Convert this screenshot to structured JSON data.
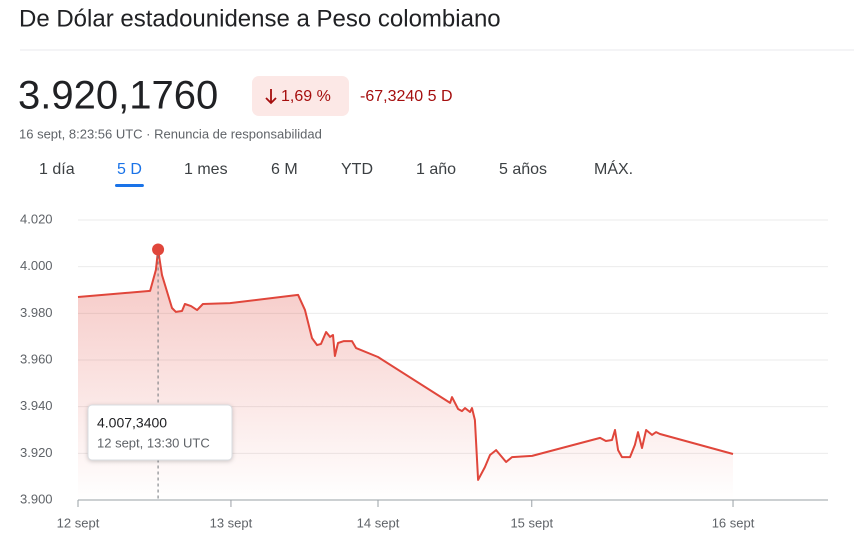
{
  "header": {
    "title": "De Dólar estadounidense a Peso colombiano",
    "price": "3.920,1760",
    "change_percent": "1,69 %",
    "change_value": "-67,3240 5 D",
    "timestamp": "16 sept, 8:23:56 UTC · Renuncia de responsabilidad"
  },
  "tabs": {
    "items": [
      "1 día",
      "5 D",
      "1 mes",
      "6 M",
      "YTD",
      "1 año",
      "5 años",
      "MÁX."
    ],
    "selected": 1
  },
  "chart_data": {
    "type": "line",
    "color": "#e0463b",
    "grid": true,
    "x": [
      0,
      0.44,
      0.476,
      0.489,
      0.513,
      0.574,
      0.598,
      0.635,
      0.653,
      0.69,
      0.727,
      0.763,
      0.928,
      1.344,
      1.386,
      1.429,
      1.46,
      1.484,
      1.515,
      1.539,
      1.557,
      1.569,
      1.588,
      1.624,
      1.673,
      1.698,
      1.832,
      2.272,
      2.284,
      2.321,
      2.345,
      2.363,
      2.394,
      2.406,
      2.424,
      2.443,
      2.485,
      2.516,
      2.553,
      2.614,
      2.65,
      2.773,
      3.188,
      3.224,
      3.261,
      3.279,
      3.298,
      3.322,
      3.371,
      3.401,
      3.42,
      3.444,
      3.469,
      3.505,
      3.53,
      3.554,
      4.0
    ],
    "series": [
      {
        "name": "USD/COP",
        "color": "#e0463b",
        "values": [
          3987.0,
          3989.6,
          3998.6,
          4007.34,
          3996.4,
          3982.3,
          3980.6,
          3981.0,
          3984.0,
          3983.1,
          3981.4,
          3984.0,
          3984.4,
          3987.9,
          3981.4,
          3969.4,
          3966.4,
          3966.9,
          3972.0,
          3969.9,
          3970.7,
          3961.7,
          3967.3,
          3968.1,
          3968.1,
          3965.1,
          3961.3,
          3941.6,
          3944.1,
          3939.0,
          3938.1,
          3939.4,
          3937.7,
          3939.4,
          3934.3,
          3908.6,
          3914.1,
          3919.3,
          3921.4,
          3916.3,
          3918.4,
          3918.9,
          3926.6,
          3925.3,
          3925.7,
          3930.0,
          3921.4,
          3918.4,
          3918.4,
          3923.6,
          3929.1,
          3922.3,
          3930.0,
          3927.9,
          3929.1,
          3928.3,
          3919.7
        ]
      }
    ],
    "ylim": [
      3900,
      4020
    ],
    "yticks": [
      {
        "value": 3900,
        "label": "3.900"
      },
      {
        "value": 3920,
        "label": "3.920"
      },
      {
        "value": 3940,
        "label": "3.940"
      },
      {
        "value": 3960,
        "label": "3.960"
      },
      {
        "value": 3980,
        "label": "3.980"
      },
      {
        "value": 4000,
        "label": "4.000"
      },
      {
        "value": 4020,
        "label": "4.020"
      }
    ],
    "xlim": [
      0,
      4.58
    ],
    "xticks": [
      {
        "value": 0,
        "label": "12 sept"
      },
      {
        "value": 0.934,
        "label": "13 sept"
      },
      {
        "value": 1.832,
        "label": "14 sept"
      },
      {
        "value": 2.771,
        "label": "15 sept"
      },
      {
        "value": 4,
        "label": "16 sept"
      }
    ],
    "tooltip": {
      "index": 3,
      "value_label": "4.007,3400",
      "time": "12 sept, 13:30 UTC"
    }
  }
}
